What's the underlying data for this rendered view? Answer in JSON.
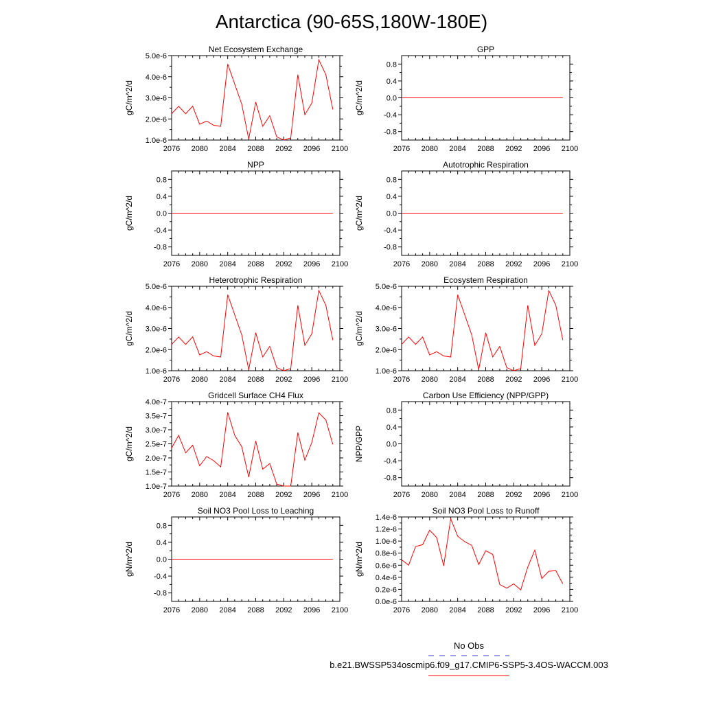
{
  "title": "Antarctica (90-65S,180W-180E)",
  "legend": {
    "obs_label": "No Obs",
    "obs_color": "#3a3ad0",
    "model_label": "b.e21.BWSSP534oscmip6.f09_g17.CMIP6-SSP5-3.4OS-WACCM.003",
    "model_color": "#ff0000"
  },
  "chart_data": [
    {
      "type": "line",
      "title": "Net Ecosystem Exchange",
      "ylabel": "gC/m^2/d",
      "xlim": [
        2076,
        2100
      ],
      "xticks": [
        2076,
        2080,
        2084,
        2088,
        2092,
        2096,
        2100
      ],
      "ylim": [
        1e-06,
        5e-06
      ],
      "yticks": [
        1e-06,
        2e-06,
        3e-06,
        4e-06,
        5e-06
      ],
      "ytick_labels": [
        "1.0e-6",
        "2.0e-6",
        "3.0e-6",
        "4.0e-6",
        "5.0e-6"
      ],
      "x": [
        2076,
        2077,
        2078,
        2079,
        2080,
        2081,
        2082,
        2083,
        2084,
        2085,
        2086,
        2087,
        2088,
        2089,
        2090,
        2091,
        2092,
        2093,
        2094,
        2095,
        2096,
        2097,
        2098,
        2099
      ],
      "values": [
        2.25e-06,
        2.6e-06,
        2.25e-06,
        2.6e-06,
        1.75e-06,
        1.9e-06,
        1.7e-06,
        1.65e-06,
        4.6e-06,
        3.65e-06,
        2.7e-06,
        1.05e-06,
        2.8e-06,
        1.65e-06,
        2.15e-06,
        1.15e-06,
        1e-06,
        1.1e-06,
        4.1e-06,
        2.2e-06,
        2.75e-06,
        4.8e-06,
        4.1e-06,
        2.45e-06
      ]
    },
    {
      "type": "line",
      "title": "GPP",
      "ylabel": "gC/m^2/d",
      "xlim": [
        2076,
        2100
      ],
      "xticks": [
        2076,
        2080,
        2084,
        2088,
        2092,
        2096,
        2100
      ],
      "ylim": [
        -1.0,
        1.0
      ],
      "yticks": [
        -0.8,
        -0.4,
        0.0,
        0.4,
        0.8
      ],
      "ytick_labels": [
        "-0.8",
        "-0.4",
        "0.0",
        "0.4",
        "0.8"
      ],
      "x": [
        2076,
        2099
      ],
      "values": [
        0.0,
        0.0
      ]
    },
    {
      "type": "line",
      "title": "NPP",
      "ylabel": "gC/m^2/d",
      "xlim": [
        2076,
        2100
      ],
      "xticks": [
        2076,
        2080,
        2084,
        2088,
        2092,
        2096,
        2100
      ],
      "ylim": [
        -1.0,
        1.0
      ],
      "yticks": [
        -0.8,
        -0.4,
        0.0,
        0.4,
        0.8
      ],
      "ytick_labels": [
        "-0.8",
        "-0.4",
        "0.0",
        "0.4",
        "0.8"
      ],
      "x": [
        2076,
        2099
      ],
      "values": [
        0.0,
        0.0
      ]
    },
    {
      "type": "line",
      "title": "Autotrophic Respiration",
      "ylabel": "gC/m^2/d",
      "xlim": [
        2076,
        2100
      ],
      "xticks": [
        2076,
        2080,
        2084,
        2088,
        2092,
        2096,
        2100
      ],
      "ylim": [
        -1.0,
        1.0
      ],
      "yticks": [
        -0.8,
        -0.4,
        0.0,
        0.4,
        0.8
      ],
      "ytick_labels": [
        "-0.8",
        "-0.4",
        "0.0",
        "0.4",
        "0.8"
      ],
      "x": [
        2076,
        2099
      ],
      "values": [
        0.0,
        0.0
      ]
    },
    {
      "type": "line",
      "title": "Heterotrophic Respiration",
      "ylabel": "gC/m^2/d",
      "xlim": [
        2076,
        2100
      ],
      "xticks": [
        2076,
        2080,
        2084,
        2088,
        2092,
        2096,
        2100
      ],
      "ylim": [
        1e-06,
        5e-06
      ],
      "yticks": [
        1e-06,
        2e-06,
        3e-06,
        4e-06,
        5e-06
      ],
      "ytick_labels": [
        "1.0e-6",
        "2.0e-6",
        "3.0e-6",
        "4.0e-6",
        "5.0e-6"
      ],
      "x": [
        2076,
        2077,
        2078,
        2079,
        2080,
        2081,
        2082,
        2083,
        2084,
        2085,
        2086,
        2087,
        2088,
        2089,
        2090,
        2091,
        2092,
        2093,
        2094,
        2095,
        2096,
        2097,
        2098,
        2099
      ],
      "values": [
        2.25e-06,
        2.6e-06,
        2.25e-06,
        2.6e-06,
        1.75e-06,
        1.9e-06,
        1.7e-06,
        1.65e-06,
        4.6e-06,
        3.65e-06,
        2.7e-06,
        1.05e-06,
        2.8e-06,
        1.65e-06,
        2.15e-06,
        1.15e-06,
        1e-06,
        1.1e-06,
        4.1e-06,
        2.2e-06,
        2.75e-06,
        4.8e-06,
        4.1e-06,
        2.45e-06
      ]
    },
    {
      "type": "line",
      "title": "Ecosystem Respiration",
      "ylabel": "gC/m^2/d",
      "xlim": [
        2076,
        2100
      ],
      "xticks": [
        2076,
        2080,
        2084,
        2088,
        2092,
        2096,
        2100
      ],
      "ylim": [
        1e-06,
        5e-06
      ],
      "yticks": [
        1e-06,
        2e-06,
        3e-06,
        4e-06,
        5e-06
      ],
      "ytick_labels": [
        "1.0e-6",
        "2.0e-6",
        "3.0e-6",
        "4.0e-6",
        "5.0e-6"
      ],
      "x": [
        2076,
        2077,
        2078,
        2079,
        2080,
        2081,
        2082,
        2083,
        2084,
        2085,
        2086,
        2087,
        2088,
        2089,
        2090,
        2091,
        2092,
        2093,
        2094,
        2095,
        2096,
        2097,
        2098,
        2099
      ],
      "values": [
        2.25e-06,
        2.6e-06,
        2.25e-06,
        2.6e-06,
        1.75e-06,
        1.9e-06,
        1.7e-06,
        1.65e-06,
        4.6e-06,
        3.65e-06,
        2.7e-06,
        1.05e-06,
        2.8e-06,
        1.65e-06,
        2.15e-06,
        1.15e-06,
        1e-06,
        1.1e-06,
        4.1e-06,
        2.2e-06,
        2.75e-06,
        4.8e-06,
        4.1e-06,
        2.45e-06
      ]
    },
    {
      "type": "line",
      "title": "Gridcell Surface CH4 Flux",
      "ylabel": "gC/m^2/d",
      "xlim": [
        2076,
        2100
      ],
      "xticks": [
        2076,
        2080,
        2084,
        2088,
        2092,
        2096,
        2100
      ],
      "ylim": [
        1e-07,
        4e-07
      ],
      "yticks": [
        1e-07,
        1.5e-07,
        2e-07,
        2.5e-07,
        3e-07,
        3.5e-07,
        4e-07
      ],
      "ytick_labels": [
        "1.0e-7",
        "1.5e-7",
        "2.0e-7",
        "2.5e-7",
        "3.0e-7",
        "3.5e-7",
        "4.0e-7"
      ],
      "x": [
        2076,
        2077,
        2078,
        2079,
        2080,
        2081,
        2082,
        2083,
        2084,
        2085,
        2086,
        2087,
        2088,
        2089,
        2090,
        2091,
        2092,
        2093,
        2094,
        2095,
        2096,
        2097,
        2098,
        2099
      ],
      "values": [
        2.35e-07,
        2.8e-07,
        2.18e-07,
        2.45e-07,
        1.72e-07,
        2.05e-07,
        1.9e-07,
        1.68e-07,
        3.62e-07,
        2.8e-07,
        2.4e-07,
        1.32e-07,
        2.6e-07,
        1.6e-07,
        1.8e-07,
        1.07e-07,
        1e-07,
        1e-07,
        2.9e-07,
        1.92e-07,
        2.55e-07,
        3.6e-07,
        3.35e-07,
        2.48e-07
      ]
    },
    {
      "type": "line",
      "title": "Carbon Use Efficiency (NPP/GPP)",
      "ylabel": "NPP/GPP",
      "xlim": [
        2076,
        2100
      ],
      "xticks": [
        2076,
        2080,
        2084,
        2088,
        2092,
        2096,
        2100
      ],
      "ylim": [
        -1.0,
        1.0
      ],
      "yticks": [
        -0.8,
        -0.4,
        0.0,
        0.4,
        0.8
      ],
      "ytick_labels": [
        "-0.8",
        "-0.4",
        "0.0",
        "0.4",
        "0.8"
      ],
      "x": [],
      "values": []
    },
    {
      "type": "line",
      "title": "Soil NO3 Pool Loss to Leaching",
      "ylabel": "gN/m^2/d",
      "xlim": [
        2076,
        2100
      ],
      "xticks": [
        2076,
        2080,
        2084,
        2088,
        2092,
        2096,
        2100
      ],
      "ylim": [
        -1.0,
        1.0
      ],
      "yticks": [
        -0.8,
        -0.4,
        0.0,
        0.4,
        0.8
      ],
      "ytick_labels": [
        "-0.8",
        "-0.4",
        "0.0",
        "0.4",
        "0.8"
      ],
      "x": [
        2076,
        2099
      ],
      "values": [
        0.0,
        0.0
      ]
    },
    {
      "type": "line",
      "title": "Soil NO3 Pool Loss to Runoff",
      "ylabel": "gN/m^2/d",
      "xlim": [
        2076,
        2100
      ],
      "xticks": [
        2076,
        2080,
        2084,
        2088,
        2092,
        2096,
        2100
      ],
      "ylim": [
        0.0,
        1.4e-06
      ],
      "yticks": [
        0.0,
        2e-07,
        4e-07,
        6e-07,
        8e-07,
        1e-06,
        1.2e-06,
        1.4e-06
      ],
      "ytick_labels": [
        "0.0e-6",
        "0.2e-6",
        "0.4e-6",
        "0.6e-6",
        "0.8e-6",
        "1.0e-6",
        "1.2e-6",
        "1.4e-6"
      ],
      "x": [
        2076,
        2077,
        2078,
        2079,
        2080,
        2081,
        2082,
        2083,
        2084,
        2085,
        2086,
        2087,
        2088,
        2089,
        2090,
        2091,
        2092,
        2093,
        2094,
        2095,
        2096,
        2097,
        2098,
        2099
      ],
      "values": [
        6.9e-07,
        6e-07,
        9.1e-07,
        9.4e-07,
        1.18e-06,
        1.06e-06,
        5.9e-07,
        1.37e-06,
        1.08e-06,
        9.9e-07,
        9.3e-07,
        6.1e-07,
        8.4e-07,
        7.8e-07,
        2.8e-07,
        2.2e-07,
        2.9e-07,
        1.9e-07,
        5.7e-07,
        8.5e-07,
        3.8e-07,
        5e-07,
        5.1e-07,
        2.9e-07
      ]
    }
  ]
}
